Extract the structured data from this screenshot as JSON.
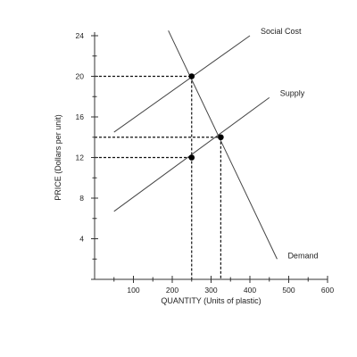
{
  "chart_data": {
    "type": "line",
    "title": "",
    "xlabel": "QUANTITY (Units of plastic)",
    "ylabel": "PRICE (Dollars per unit)",
    "xlim": [
      0,
      600
    ],
    "ylim": [
      0,
      24
    ],
    "x_ticks": [
      100,
      200,
      300,
      400,
      500,
      600
    ],
    "x_tick_labels": [
      "100",
      "200",
      "300",
      "400",
      "500",
      "600"
    ],
    "y_ticks": [
      4,
      8,
      12,
      16,
      20,
      24
    ],
    "y_tick_labels": [
      "4",
      "8",
      "12",
      "16",
      "20",
      "24"
    ],
    "grid": false,
    "series": [
      {
        "name": "Social Cost",
        "x": [
          50,
          400
        ],
        "y": [
          14.5,
          24
        ]
      },
      {
        "name": "Supply",
        "x": [
          50,
          450
        ],
        "y": [
          6.7,
          17.9
        ]
      },
      {
        "name": "Demand",
        "x": [
          190,
          470
        ],
        "y": [
          24.5,
          2
        ]
      }
    ],
    "points": [
      {
        "x": 250,
        "y": 20
      },
      {
        "x": 325,
        "y": 14
      },
      {
        "x": 250,
        "y": 12
      }
    ],
    "reference_lines": [
      {
        "from": [
          0,
          20
        ],
        "to": [
          250,
          20
        ]
      },
      {
        "from": [
          250,
          20
        ],
        "to": [
          250,
          0
        ]
      },
      {
        "from": [
          0,
          14
        ],
        "to": [
          325,
          14
        ]
      },
      {
        "from": [
          325,
          14
        ],
        "to": [
          325,
          0
        ]
      },
      {
        "from": [
          0,
          12
        ],
        "to": [
          250,
          12
        ]
      }
    ]
  }
}
